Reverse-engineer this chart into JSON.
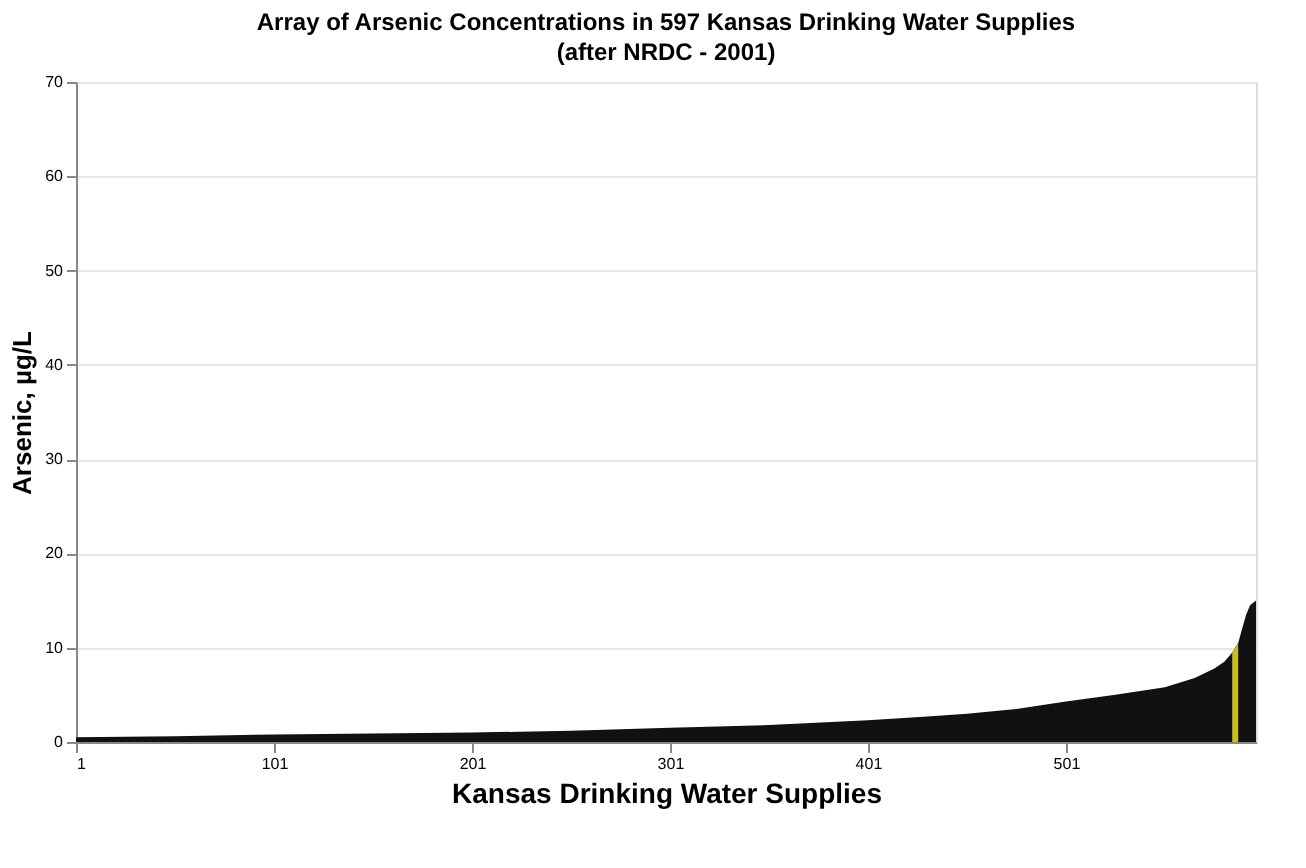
{
  "chart_data": {
    "type": "area",
    "title": "Array of Arsenic Concentrations in 597 Kansas Drinking Water Supplies",
    "subtitle": "(after NRDC - 2001)",
    "xlabel": "Kansas Drinking Water Supplies",
    "ylabel": "Arsenic, µg/L",
    "series": [
      {
        "color": "#111111",
        "x": [
          1,
          51,
          101,
          151,
          201,
          251,
          301,
          351,
          401,
          431,
          451,
          476,
          501,
          526,
          551,
          566,
          576,
          581,
          585,
          588,
          590,
          592,
          594,
          597
        ],
        "values": [
          0.5,
          0.6,
          0.8,
          0.9,
          1.0,
          1.2,
          1.5,
          1.8,
          2.3,
          2.7,
          3.0,
          3.5,
          4.3,
          5.0,
          5.8,
          6.8,
          7.8,
          8.5,
          9.5,
          10.5,
          12,
          13.5,
          14.5,
          15
        ]
      },
      {
        "color": "#c8c020",
        "x": [
          585,
          586,
          587,
          588
        ],
        "values": [
          9.5,
          9.8,
          10.1,
          10.5
        ]
      }
    ],
    "xlim": [
      1,
      597
    ],
    "xticks": [
      1,
      101,
      201,
      301,
      401,
      501
    ],
    "ylim": [
      0,
      70
    ],
    "yticks": [
      0,
      10,
      20,
      30,
      40,
      50,
      60,
      70
    ],
    "grid": "y"
  }
}
